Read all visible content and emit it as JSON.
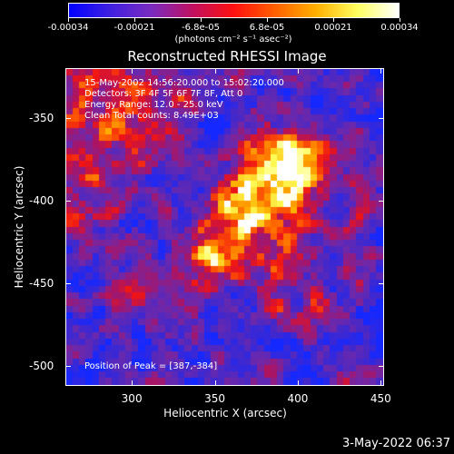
{
  "colorbar": {
    "colors": [
      "#0000ff",
      "#4020e0",
      "#7a2bc0",
      "#c01060",
      "#ff1010",
      "#ff6000",
      "#ffb000",
      "#ffff60",
      "#ffffff"
    ],
    "ticks": [
      "-0.00034",
      "-0.00021",
      "-6.8e-05",
      "6.8e-05",
      "0.00021",
      "0.00034"
    ],
    "units": "(photons cm⁻² s⁻¹ asec⁻²)"
  },
  "plot": {
    "title": "Reconstructed RHESSI Image",
    "info": [
      "15-May-2002 14:56:20.000 to 15:02:20.000",
      "Detectors: 3F 4F 5F 6F 7F 8F, Att 0",
      "Energy Range: 12.0 - 25.0 keV",
      "Clean     Total counts: 8.49E+03"
    ],
    "peak_label": "Position of Peak = [387,-384]",
    "xlabel": "Heliocentric X (arcsec)",
    "ylabel": "Heliocentric Y (arcsec)",
    "xticks": [
      "300",
      "350",
      "400",
      "450"
    ],
    "yticks": [
      "-350",
      "-400",
      "-450",
      "-500"
    ]
  },
  "chart_data": {
    "type": "heatmap",
    "title": "Reconstructed RHESSI Image",
    "xlabel": "Heliocentric X (arcsec)",
    "ylabel": "Heliocentric Y (arcsec)",
    "xlim": [
      260,
      452
    ],
    "ylim": [
      -512,
      -320
    ],
    "xticks": [
      300,
      350,
      400,
      450
    ],
    "yticks": [
      -350,
      -400,
      -450,
      -500
    ],
    "value_range": [
      -0.00034,
      0.00034
    ],
    "peak": [
      387,
      -384
    ]
  },
  "timestamp": "3-May-2022 06:37"
}
